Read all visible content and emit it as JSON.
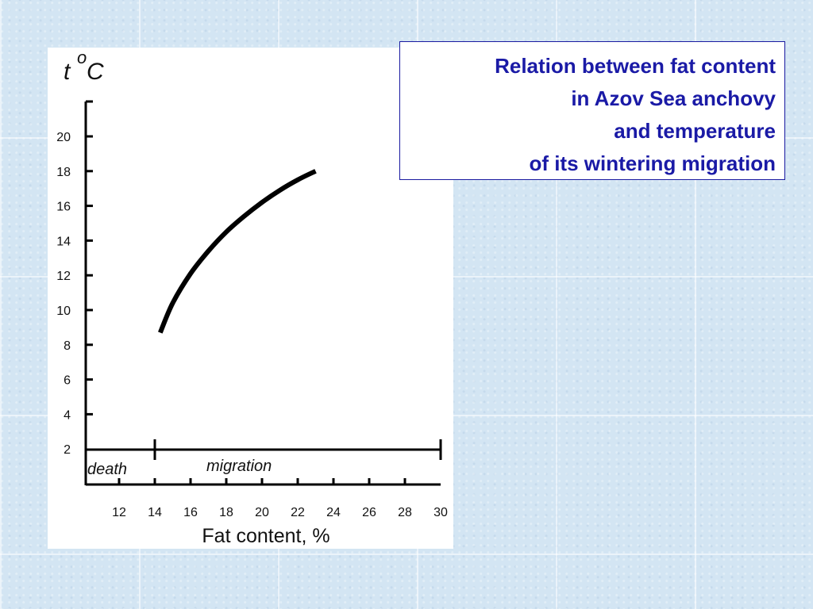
{
  "title": {
    "lines": [
      "Relation between fat content",
      "in Azov Sea anchovy",
      "and temperature",
      "of its wintering migration"
    ]
  },
  "colors": {
    "title_text": "#1a1aa6",
    "title_border": "#1a1aa0",
    "curve": "#000000",
    "background": "#d3e5f3"
  },
  "chart_data": {
    "type": "line",
    "title": "Relation between fat content in Azov Sea anchovy and temperature of its wintering migration",
    "ylabel_t": "t",
    "ylabel_degree": "o",
    "ylabel_unit": "C",
    "xlabel": "Fat content, %",
    "xlim": [
      10,
      30
    ],
    "ylim": [
      0,
      22
    ],
    "x_ticks": [
      "12",
      "14",
      "16",
      "18",
      "20",
      "22",
      "24",
      "26",
      "28",
      "30"
    ],
    "y_ticks": [
      "2",
      "4",
      "6",
      "8",
      "10",
      "12",
      "14",
      "16",
      "18",
      "20"
    ],
    "bands": [
      {
        "label": "death",
        "from": 10,
        "to": 14
      },
      {
        "label": "migration",
        "from": 14,
        "to": 30
      }
    ],
    "series": [
      {
        "x": [
          14.3,
          15,
          16,
          17,
          18,
          19,
          20,
          21,
          22,
          23
        ],
        "y": [
          8.7,
          10.4,
          12.1,
          13.4,
          14.5,
          15.4,
          16.2,
          16.9,
          17.5,
          18.0
        ]
      }
    ],
    "grid": false,
    "legend": "none"
  }
}
